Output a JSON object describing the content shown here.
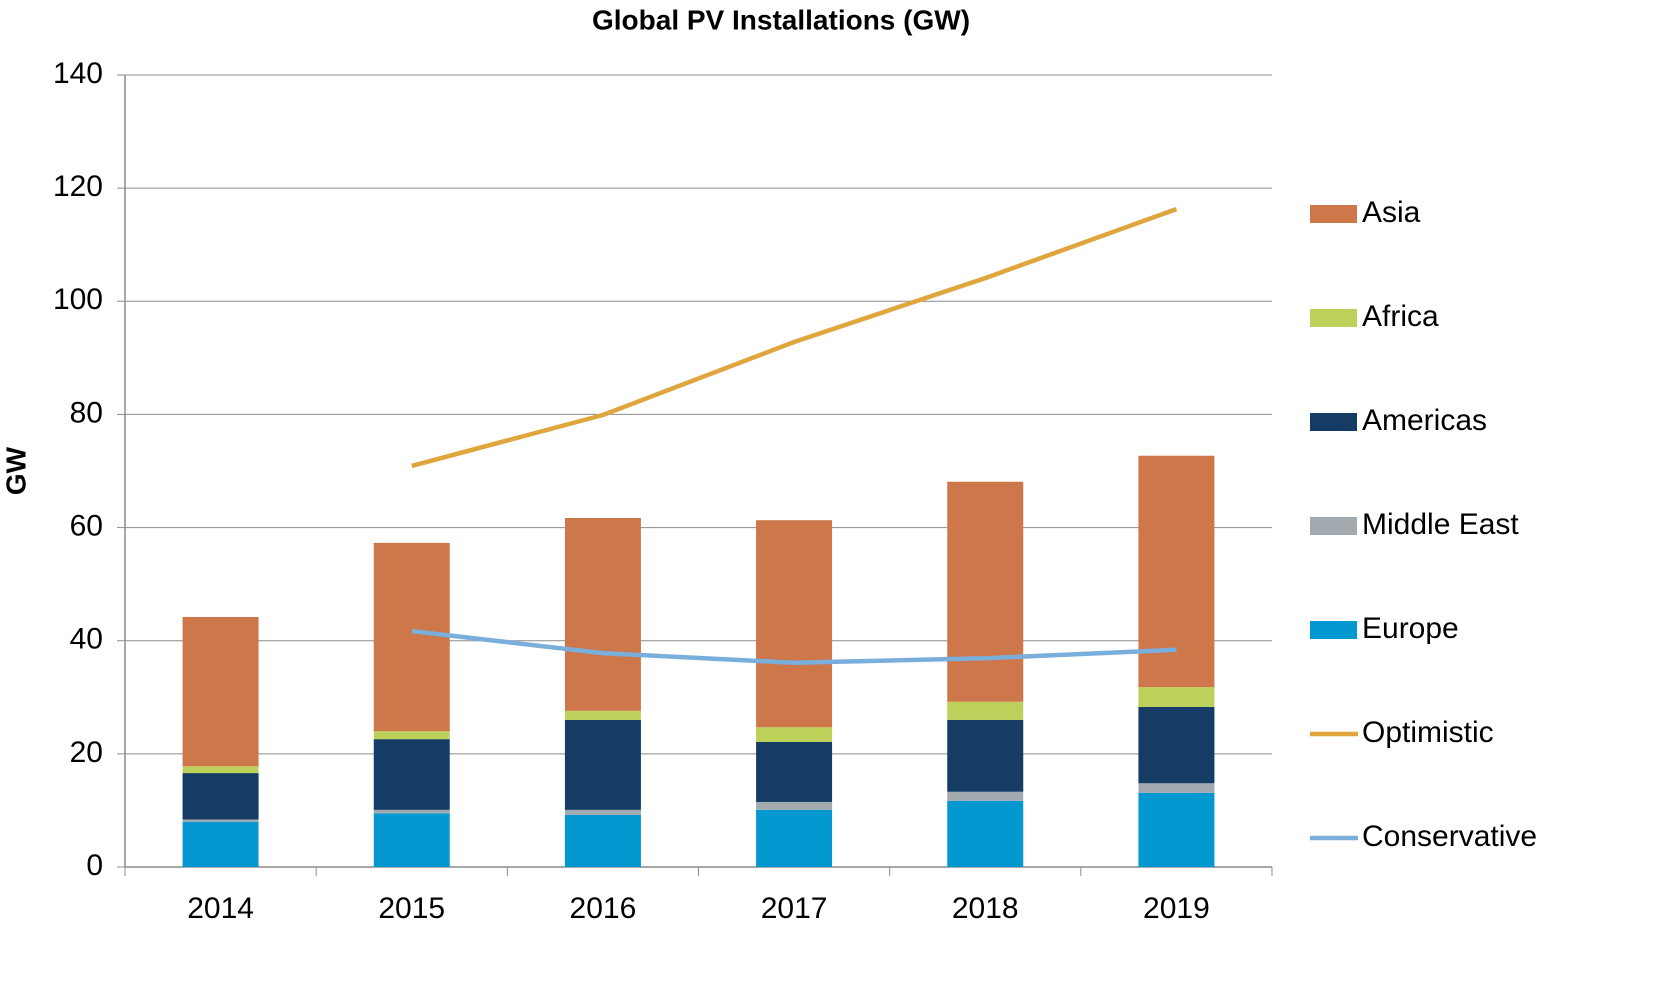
{
  "chart_data": {
    "type": "bar",
    "stacked": true,
    "title": "Global PV Installations (GW)",
    "y_label": "GW",
    "categories": [
      "2014",
      "2015",
      "2016",
      "2017",
      "2018",
      "2019"
    ],
    "series": [
      {
        "name": "Europe",
        "color": "#0498d0",
        "values": [
          8,
          9.5,
          9.2,
          10.1,
          11.7,
          13.1
        ]
      },
      {
        "name": "Middle East",
        "color": "#a2aab0",
        "values": [
          0.4,
          0.6,
          0.9,
          1.4,
          1.6,
          1.7
        ]
      },
      {
        "name": "Americas",
        "color": "#143c64",
        "values": [
          8.2,
          12.5,
          15.9,
          10.6,
          12.7,
          13.5
        ]
      },
      {
        "name": "Africa",
        "color": "#bdd05a",
        "values": [
          1.2,
          1.4,
          1.6,
          2.6,
          3.2,
          3.5
        ]
      },
      {
        "name": "Asia",
        "color": "#cd774a",
        "values": [
          26.4,
          33.3,
          34.1,
          36.6,
          38.9,
          40.9
        ]
      },
      {
        "name": "Optimistic",
        "type": "line",
        "color": "#e0a53c",
        "values": [
          null,
          70.9,
          79.9,
          92.8,
          104.1,
          116.3
        ]
      },
      {
        "name": "Conservative",
        "type": "line",
        "color": "#7aaedb",
        "values": [
          null,
          41.7,
          37.8,
          36.1,
          36.9,
          38.4
        ]
      }
    ],
    "ylim": [
      0,
      140
    ],
    "yticks": [
      0,
      20,
      40,
      60,
      80,
      100,
      120,
      140
    ],
    "grid": true,
    "legend_position": "right"
  }
}
